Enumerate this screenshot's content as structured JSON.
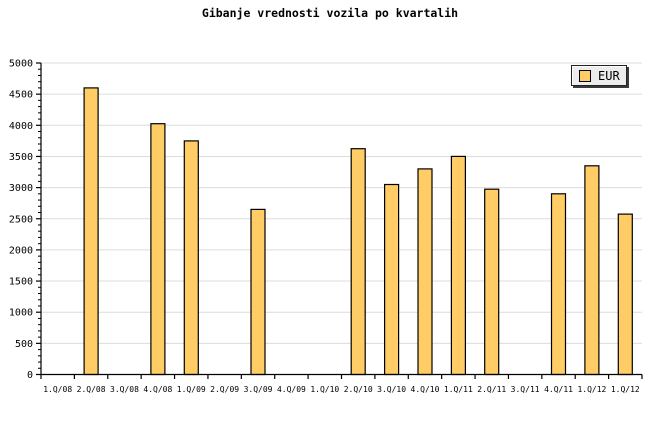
{
  "chart_data": {
    "type": "bar",
    "title": "Gibanje vrednosti vozila po kvartalih",
    "series_name": "EUR",
    "categories": [
      "1.Q/08",
      "2.Q/08",
      "3.Q/08",
      "4.Q/08",
      "1.Q/09",
      "2.Q/09",
      "3.Q/09",
      "4.Q/09",
      "1.Q/10",
      "2.Q/10",
      "3.Q/10",
      "4.Q/10",
      "1.Q/11",
      "2.Q/11",
      "3.Q/11",
      "4.Q/11",
      "1.Q/12",
      "1.Q/12"
    ],
    "values": [
      null,
      4600,
      null,
      4025,
      3750,
      null,
      2650,
      null,
      null,
      3625,
      3050,
      3300,
      3500,
      2975,
      null,
      2900,
      3350,
      2575
    ],
    "xlabel": "",
    "ylabel": "",
    "ylim": [
      0,
      5000
    ],
    "ytick_step": 500,
    "yminor_step": 100,
    "grid": "horizontal-major",
    "legend_position": "top-right",
    "colors": {
      "bar_fill": "#FFCC66",
      "bar_border": "#000000",
      "grid": "#DCDCDC",
      "axis": "#000000",
      "text": "#000000",
      "legend_bg": "#EDEDED",
      "background": "#FFFFFF"
    }
  }
}
